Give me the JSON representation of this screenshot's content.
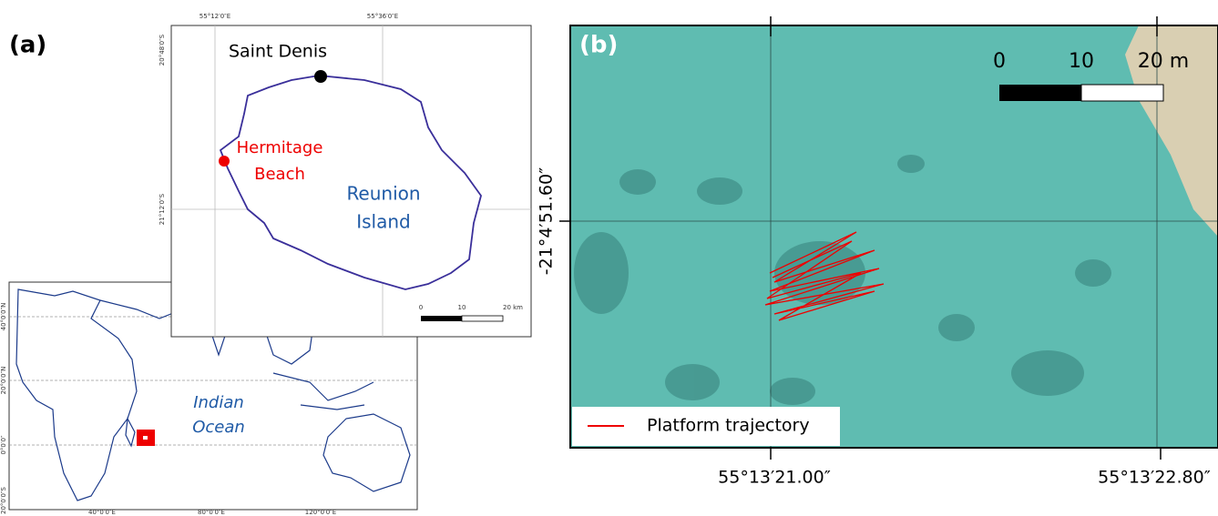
{
  "panel_a": {
    "label": "(a)",
    "inset": {
      "x_labels": [
        "55°12′0″E",
        "55°36′0″E"
      ],
      "y_labels": [
        "20°48′0″S",
        "21°12′0″S"
      ],
      "saint_denis": "Saint Denis",
      "hermitage": [
        "Hermitage",
        "Beach"
      ],
      "island": [
        "Reunion",
        "Island"
      ],
      "scale_labels": [
        "0",
        "10",
        "20 km"
      ]
    },
    "world": {
      "y_labels": [
        "40°0′0″N",
        "20°0′0″N",
        "0°0′0″",
        "20°0′0″S"
      ],
      "x_labels": [
        "40°0′0″E",
        "80°0′0″E",
        "120°0′0″E"
      ],
      "ocean": [
        "Indian",
        "Ocean"
      ]
    }
  },
  "panel_b": {
    "label": "(b)",
    "scale_labels": [
      "0",
      "10",
      "20 m"
    ],
    "y_label": "-21°4′51.60″",
    "x_labels": [
      "55°13′21.00″",
      "55°13′22.80″"
    ],
    "legend": "Platform trajectory"
  }
}
